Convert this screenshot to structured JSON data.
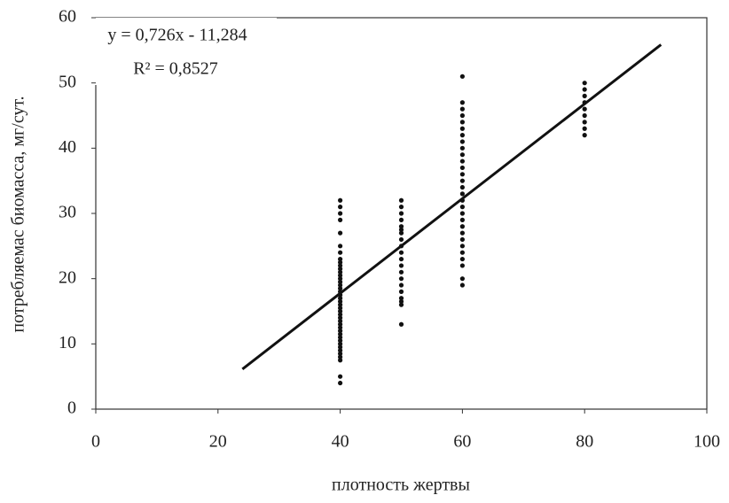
{
  "chart_data": {
    "type": "scatter",
    "xlabel": "плотность жертвы",
    "ylabel": "потребляемас биомасса, мг/сут.",
    "annotations": [
      "y = 0,726x - 11,284",
      "R² = 0,8527"
    ],
    "xlim": [
      0,
      100
    ],
    "xticks": [
      0,
      20,
      40,
      60,
      80,
      100
    ],
    "ylim": [
      0,
      60
    ],
    "yticks": [
      0,
      10,
      20,
      30,
      40,
      50,
      60
    ],
    "grid": false,
    "color": "#111111",
    "x": [
      40,
      40,
      40,
      40,
      40,
      40,
      40,
      40,
      40,
      40,
      40,
      40,
      40,
      40,
      40,
      40,
      40,
      40,
      40,
      40,
      40,
      40,
      40,
      40,
      40,
      40,
      40,
      40,
      40,
      40,
      40,
      40,
      40,
      40,
      40,
      40,
      40,
      40,
      40,
      40,
      40,
      50,
      50,
      50,
      50,
      50,
      50,
      50,
      50,
      50,
      50,
      50,
      50,
      50,
      50,
      50,
      50,
      50,
      50,
      50,
      50,
      60,
      60,
      60,
      60,
      60,
      60,
      60,
      60,
      60,
      60,
      60,
      60,
      60,
      60,
      60,
      60,
      60,
      60,
      60,
      60,
      60,
      60,
      60,
      60,
      60,
      60,
      60,
      60,
      60,
      80,
      80,
      80,
      80,
      80,
      80,
      80,
      80,
      80
    ],
    "values": [
      4,
      5,
      7.5,
      8,
      8.5,
      9,
      9.5,
      10,
      10.5,
      11,
      11.5,
      12,
      12.5,
      13,
      13.5,
      14,
      14.5,
      15,
      15.5,
      16,
      16.5,
      17,
      17.5,
      18,
      18.5,
      19,
      19.5,
      20,
      20.5,
      21,
      21.5,
      22,
      22.5,
      23,
      24,
      25,
      27,
      29,
      30,
      31,
      32,
      13,
      16,
      16.5,
      17,
      18,
      19,
      20,
      21,
      22,
      23,
      24,
      25,
      26,
      27,
      27.5,
      28,
      29,
      30,
      31,
      32,
      19,
      20,
      22,
      23,
      24,
      25,
      26,
      27,
      28,
      29,
      30,
      31,
      32,
      33,
      34,
      35,
      36,
      37,
      38,
      39,
      40,
      41,
      42,
      43,
      44,
      45,
      46,
      47,
      51,
      42,
      43,
      44,
      45,
      46,
      47,
      48,
      49,
      50
    ],
    "trendline": {
      "x": [
        24,
        92.5
      ],
      "values": [
        6.14,
        55.87
      ]
    }
  }
}
